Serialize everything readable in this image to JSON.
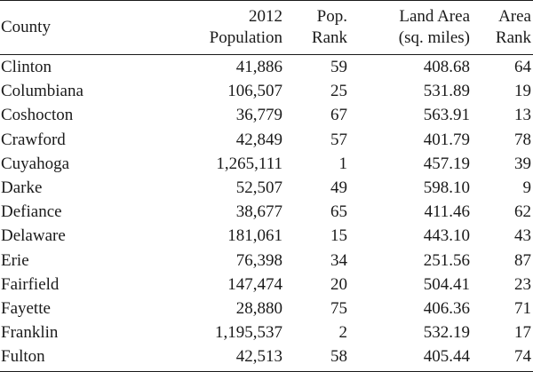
{
  "table": {
    "headers": [
      {
        "lines": [
          "County"
        ],
        "align": "left"
      },
      {
        "lines": [
          "2012",
          "Population"
        ],
        "align": "right"
      },
      {
        "lines": [
          "Pop.",
          "Rank"
        ],
        "align": "right"
      },
      {
        "lines": [
          "Land Area",
          "(sq. miles)"
        ],
        "align": "right"
      },
      {
        "lines": [
          "Area",
          "Rank"
        ],
        "align": "right"
      }
    ],
    "rows": [
      [
        "Clinton",
        "41,886",
        "59",
        "408.68",
        "64"
      ],
      [
        "Columbiana",
        "106,507",
        "25",
        "531.89",
        "19"
      ],
      [
        "Coshocton",
        "36,779",
        "67",
        "563.91",
        "13"
      ],
      [
        "Crawford",
        "42,849",
        "57",
        "401.79",
        "78"
      ],
      [
        "Cuyahoga",
        "1,265,111",
        "1",
        "457.19",
        "39"
      ],
      [
        "Darke",
        "52,507",
        "49",
        "598.10",
        "9"
      ],
      [
        "Defiance",
        "38,677",
        "65",
        "411.46",
        "62"
      ],
      [
        "Delaware",
        "181,061",
        "15",
        "443.10",
        "43"
      ],
      [
        "Erie",
        "76,398",
        "34",
        "251.56",
        "87"
      ],
      [
        "Fairfield",
        "147,474",
        "20",
        "504.41",
        "23"
      ],
      [
        "Fayette",
        "28,880",
        "75",
        "406.36",
        "71"
      ],
      [
        "Franklin",
        "1,195,537",
        "2",
        "532.19",
        "17"
      ],
      [
        "Fulton",
        "42,513",
        "58",
        "405.44",
        "74"
      ]
    ]
  }
}
